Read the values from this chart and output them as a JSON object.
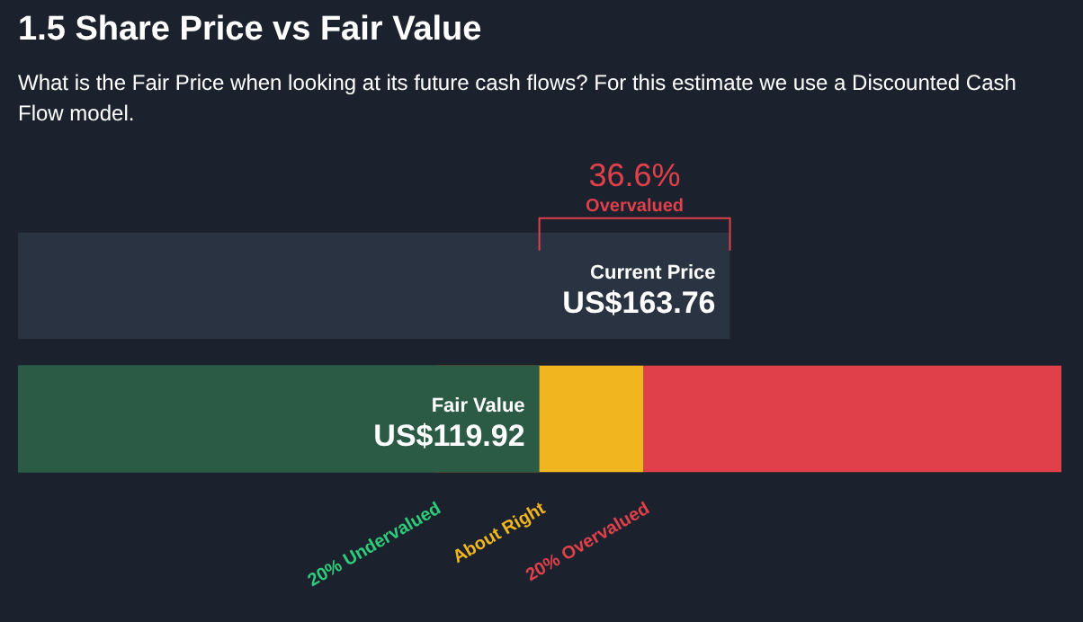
{
  "chart_data": {
    "type": "bar",
    "orientation": "horizontal",
    "title": "1.5 Share Price vs Fair Value",
    "subtitle": "What is the Fair Price when looking at its future cash flows? For this estimate we use a Discounted Cash Flow model.",
    "categories": [
      "Current Price",
      "Fair Value"
    ],
    "values": [
      163.76,
      119.92
    ],
    "value_labels": [
      "US$163.76",
      "US$119.92"
    ],
    "colors": [
      "#2a3342",
      "#2b5a45"
    ],
    "xlim": [
      0,
      240
    ],
    "tick_labels": false,
    "legend": false,
    "bands": [
      {
        "axis": "x",
        "from": 0,
        "to": 95.94,
        "label": "20% Undervalued",
        "color": "#2ecc7a"
      },
      {
        "axis": "x",
        "from": 95.94,
        "to": 143.9,
        "label": "About Right",
        "color": "#f0b51f"
      },
      {
        "axis": "x",
        "from": 143.9,
        "to": 240,
        "label": "20% Overvalued",
        "color": "#e0404a"
      }
    ],
    "annotations": [
      "36.6%",
      "Overvalued"
    ]
  }
}
